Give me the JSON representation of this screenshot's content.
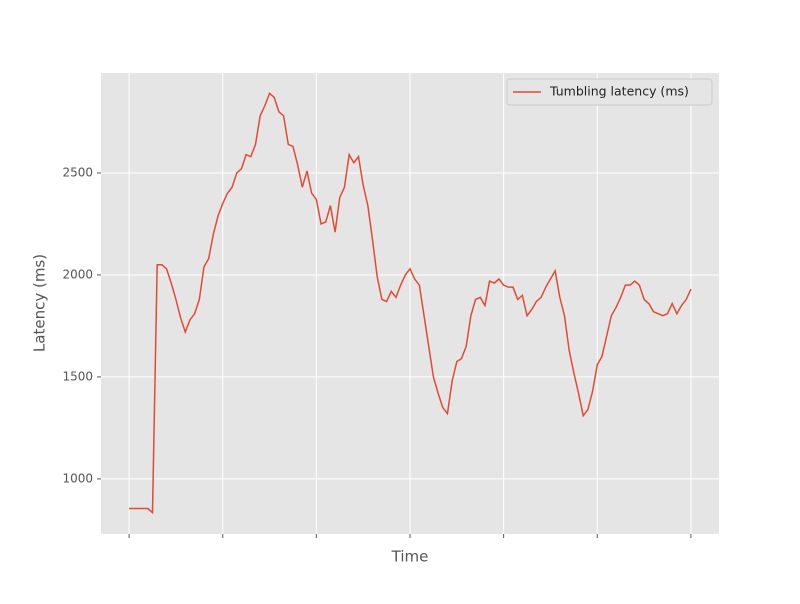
{
  "chart_data": {
    "type": "line",
    "xlabel": "Time",
    "ylabel": "Latency (ms)",
    "x": [
      0,
      1,
      2,
      3,
      4,
      5,
      6,
      7,
      8,
      9,
      10,
      11,
      12,
      13,
      14,
      15,
      16,
      17,
      18,
      19,
      20,
      21,
      22,
      23,
      24,
      25,
      26,
      27,
      28,
      29,
      30,
      31,
      32,
      33,
      34,
      35,
      36,
      37,
      38,
      39,
      40,
      41,
      42,
      43,
      44,
      45,
      46,
      47,
      48,
      49,
      50,
      51,
      52,
      53,
      54,
      55,
      56,
      57,
      58,
      59,
      60,
      61,
      62,
      63,
      64,
      65,
      66,
      67,
      68,
      69,
      70,
      71,
      72,
      73,
      74,
      75,
      76,
      77,
      78,
      79,
      80,
      81,
      82,
      83,
      84,
      85,
      86,
      87,
      88,
      89,
      90,
      91,
      92,
      93,
      94,
      95,
      96,
      97,
      98,
      99,
      100,
      101,
      102,
      103,
      104,
      105,
      106,
      107,
      108,
      109,
      110,
      111,
      112,
      113,
      114,
      115,
      116,
      117,
      118,
      119,
      120
    ],
    "series": [
      {
        "name": "Tumbling latency (ms)",
        "color": "#e24a33",
        "values": [
          855,
          855,
          855,
          855,
          855,
          835,
          2050,
          2050,
          2030,
          1960,
          1880,
          1790,
          1720,
          1780,
          1810,
          1880,
          2040,
          2080,
          2200,
          2290,
          2350,
          2400,
          2430,
          2500,
          2520,
          2590,
          2580,
          2640,
          2780,
          2830,
          2890,
          2870,
          2800,
          2780,
          2640,
          2630,
          2540,
          2430,
          2510,
          2400,
          2370,
          2250,
          2260,
          2340,
          2210,
          2380,
          2430,
          2590,
          2550,
          2580,
          2440,
          2340,
          2170,
          1990,
          1880,
          1870,
          1920,
          1890,
          1950,
          2000,
          2030,
          1980,
          1950,
          1800,
          1650,
          1500,
          1420,
          1350,
          1320,
          1480,
          1575,
          1590,
          1650,
          1800,
          1880,
          1890,
          1850,
          1970,
          1960,
          1980,
          1950,
          1940,
          1940,
          1880,
          1900,
          1800,
          1830,
          1870,
          1890,
          1940,
          1980,
          2020,
          1890,
          1800,
          1630,
          1520,
          1420,
          1310,
          1340,
          1430,
          1560,
          1600,
          1700,
          1800,
          1840,
          1890,
          1950,
          1950,
          1970,
          1950,
          1880,
          1860,
          1820,
          1810,
          1800,
          1810,
          1860,
          1810,
          1850,
          1880,
          1930
        ]
      }
    ],
    "xlim": [
      -6,
      126
    ],
    "xticks": [
      0,
      20,
      40,
      60,
      80,
      100,
      120
    ],
    "ylim": [
      730,
      2990
    ],
    "yticks": [
      1000,
      1500,
      2000,
      2500
    ],
    "grid": true,
    "legend": "upper right"
  }
}
